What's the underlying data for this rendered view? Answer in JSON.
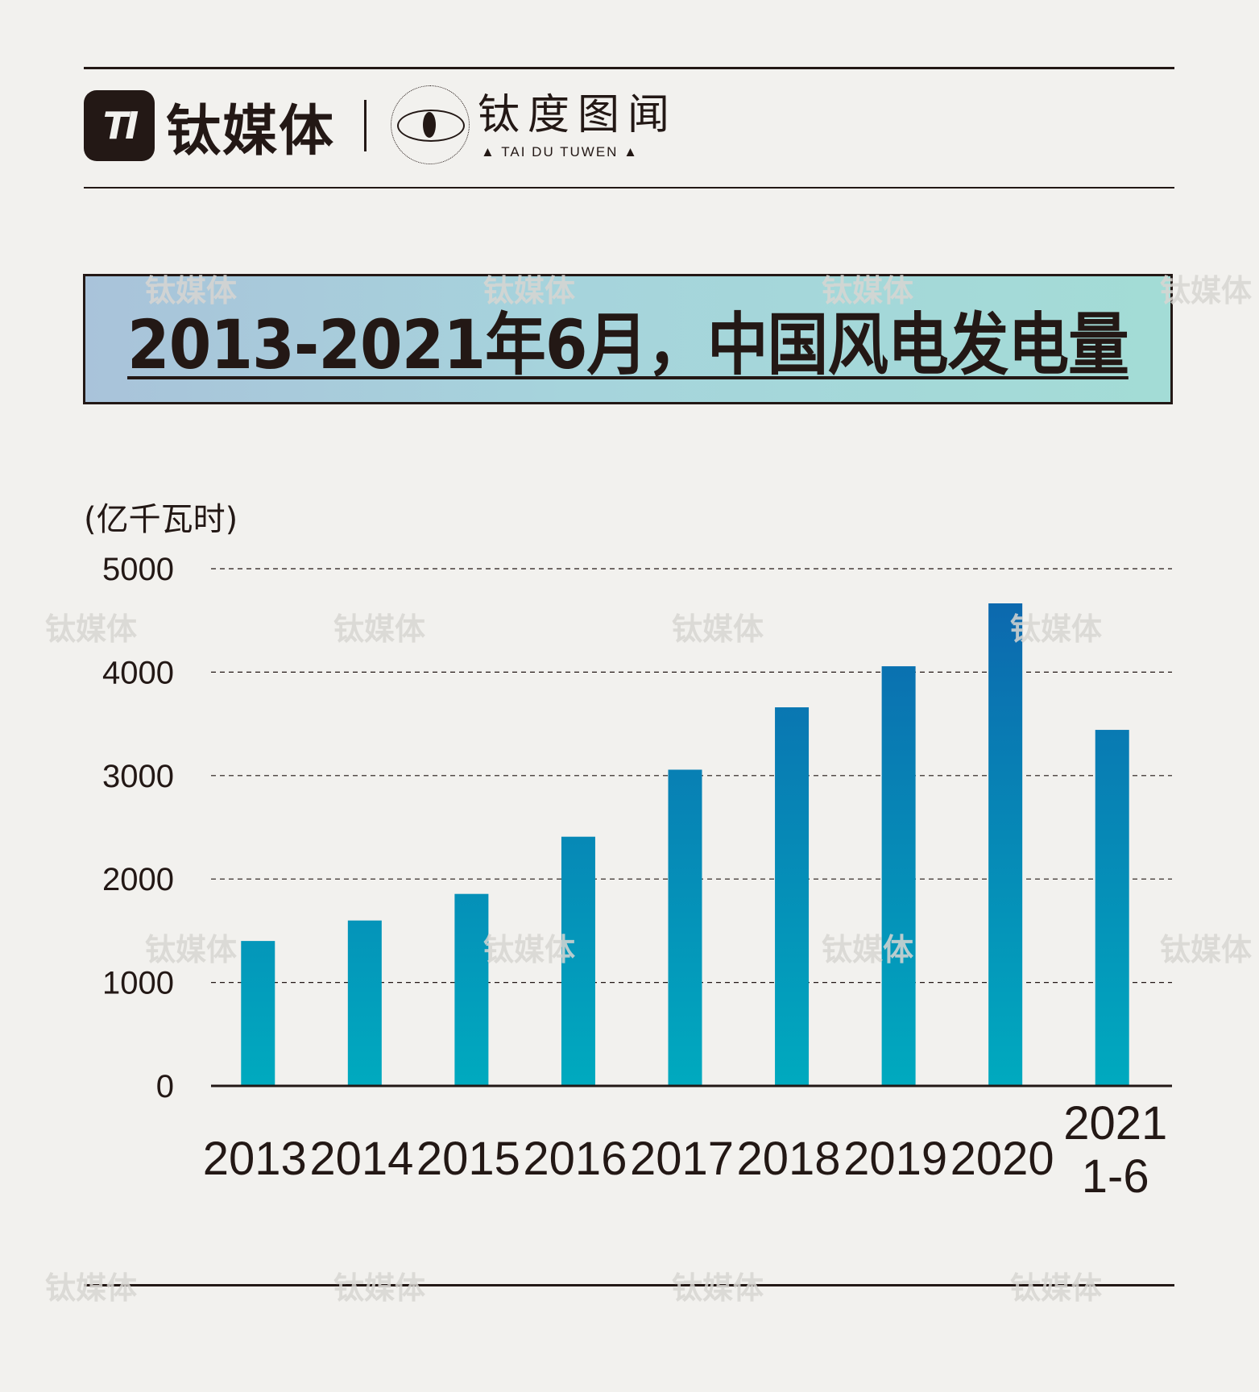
{
  "brand": {
    "logo_mark": "TI",
    "name": "钛媒体",
    "sub_name_cn": "钛度图闻",
    "sub_name_en": "▲ TAI DU TUWEN ▲"
  },
  "watermark_text": "钛媒体",
  "chart_data": {
    "type": "bar",
    "title": "2013-2021年6月，中国风电发电量",
    "ylabel": "(亿千瓦时)",
    "xlabel": "",
    "categories": [
      "2013",
      "2014",
      "2015",
      "2016",
      "2017",
      "2018",
      "2019",
      "2020",
      "2021\n1-6"
    ],
    "values": [
      1401,
      1599,
      1856,
      2409,
      3057,
      3660,
      4057,
      4665,
      3442
    ],
    "ylim": [
      0,
      5000
    ],
    "yticks": [
      0,
      1000,
      2000,
      3000,
      4000,
      5000
    ],
    "grid": true,
    "legend": "none",
    "colors": {
      "bar_top": "#0d64ad",
      "bar_bottom": "#00aabf",
      "axis": "#231815",
      "grid": "#231815"
    }
  }
}
